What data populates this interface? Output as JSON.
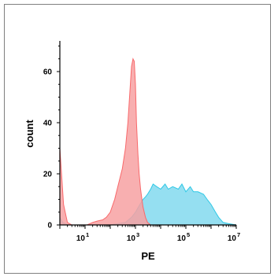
{
  "chart_data": {
    "type": "area",
    "title": "",
    "xlabel": "PE",
    "ylabel": "count",
    "x_scale": "log",
    "xlim": [
      1,
      10000000
    ],
    "ylim": [
      0,
      72
    ],
    "x_ticks": [
      {
        "value": 10,
        "label": "10",
        "exp": "1"
      },
      {
        "value": 1000,
        "label": "10",
        "exp": "3"
      },
      {
        "value": 100000,
        "label": "10",
        "exp": "5"
      },
      {
        "value": 10000000,
        "label": "10",
        "exp": "7"
      }
    ],
    "y_ticks": [
      0,
      20,
      40,
      60
    ],
    "grid": false,
    "legend": "none",
    "series": [
      {
        "color": "#f8696b",
        "fill": "#f7a1a2",
        "x": [
          1,
          1.4,
          2,
          3,
          5,
          8,
          12,
          20,
          30,
          50,
          70,
          100,
          150,
          200,
          300,
          400,
          500,
          600,
          700,
          800,
          900,
          1000,
          1100,
          1250,
          1400,
          1600,
          1800,
          2000,
          2500,
          3000,
          4000
        ],
        "y": [
          30,
          8,
          1,
          0,
          0,
          0,
          0,
          1,
          1.5,
          2,
          3,
          5,
          10,
          15,
          22,
          30,
          40,
          52,
          62,
          65,
          64,
          55,
          40,
          28,
          20,
          14,
          10,
          7,
          3,
          1,
          0
        ]
      },
      {
        "color": "#2ec8e6",
        "fill": "#8fddf0",
        "x": [
          1,
          1.3,
          2,
          3,
          5,
          10,
          50,
          100,
          200,
          400,
          700,
          1000,
          1500,
          2000,
          2500,
          3000,
          4000,
          5000,
          7000,
          10000,
          15000,
          20000,
          30000,
          50000,
          70000,
          100000,
          150000,
          200000,
          300000,
          500000,
          700000,
          1000000,
          1500000,
          2000000,
          3000000,
          5000000,
          10000000
        ],
        "y": [
          3,
          1,
          0,
          0,
          0,
          0,
          0,
          0,
          0.5,
          1,
          3,
          5,
          8,
          10,
          11,
          12,
          14,
          16,
          15,
          14,
          16,
          14,
          15,
          14,
          16,
          13,
          15,
          13,
          13,
          12,
          10,
          8,
          5,
          3,
          1,
          0.5,
          0
        ]
      }
    ]
  }
}
